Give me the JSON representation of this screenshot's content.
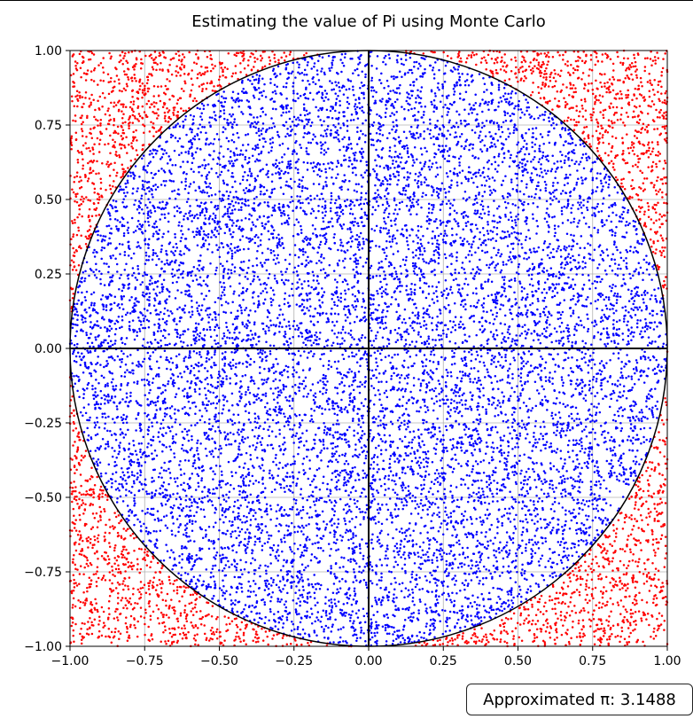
{
  "chart_data": {
    "type": "scatter",
    "title": "Estimating the value of Pi using Monte Carlo",
    "xlabel": "",
    "ylabel": "",
    "xlim": [
      -1.0,
      1.0
    ],
    "ylim": [
      -1.0,
      1.0
    ],
    "xticks": [
      "−1.00",
      "−0.75",
      "−0.50",
      "−0.25",
      "0.00",
      "0.25",
      "0.50",
      "0.75",
      "1.00"
    ],
    "yticks": [
      "1.00",
      "0.75",
      "0.50",
      "0.25",
      "0.00",
      "−0.25",
      "−0.50",
      "−0.75",
      "−1.00"
    ],
    "grid": true,
    "circle": {
      "center": [
        0,
        0
      ],
      "radius": 1.0,
      "color": "#000000"
    },
    "axes_lines": [
      {
        "orientation": "horizontal",
        "value": 0.0
      },
      {
        "orientation": "vertical",
        "value": 0.0
      }
    ],
    "series": [
      {
        "color": "#0000ff",
        "points_inside_circle": true,
        "sample_points": [
          [
            0.1,
            0.32
          ],
          [
            -0.3,
            0.4
          ],
          [
            0.5,
            -0.3
          ],
          [
            -0.6,
            -0.4
          ],
          [
            0.2,
            0.7
          ],
          [
            -0.1,
            -0.8
          ]
        ]
      },
      {
        "color": "#ff0000",
        "points_inside_circle": false,
        "sample_points": [
          [
            0.9,
            0.9
          ],
          [
            -0.9,
            0.9
          ],
          [
            0.92,
            -0.88
          ],
          [
            -0.9,
            -0.92
          ],
          [
            0.98,
            0.5
          ],
          [
            -0.97,
            -0.6
          ]
        ]
      }
    ],
    "annotation": "Approximated π: 3.1488"
  }
}
